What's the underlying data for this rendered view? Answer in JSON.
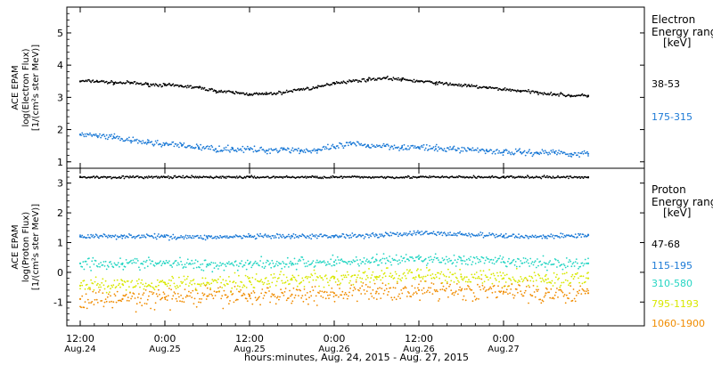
{
  "chart_data": [
    {
      "type": "scatter",
      "panel": "electron",
      "ylabel_lines": [
        "ACE EPAM",
        "log(Electron Flux)",
        "[1/(cm²s ster MeV)]"
      ],
      "ylim": [
        0.8,
        5.8
      ],
      "yticks": [
        1,
        2,
        3,
        4,
        5
      ],
      "legend_title": [
        "Electron",
        "Energy ranges",
        "[keV]"
      ],
      "series": [
        {
          "name": "38-53",
          "color": "#000000",
          "x": [
            0.0,
            0.1,
            0.2,
            0.3,
            0.4,
            0.5,
            0.6,
            0.7,
            0.8,
            0.9,
            1.0,
            1.1,
            1.2,
            1.3,
            1.4,
            1.5,
            1.6,
            1.7,
            1.8,
            1.9,
            2.0,
            2.1,
            2.2,
            2.3,
            2.4,
            2.5,
            2.6,
            2.7,
            2.8,
            2.9,
            3.0
          ],
          "y": [
            3.5,
            3.5,
            3.45,
            3.45,
            3.4,
            3.38,
            3.35,
            3.3,
            3.2,
            3.15,
            3.1,
            3.1,
            3.15,
            3.25,
            3.3,
            3.45,
            3.5,
            3.55,
            3.6,
            3.55,
            3.5,
            3.45,
            3.4,
            3.35,
            3.3,
            3.25,
            3.2,
            3.15,
            3.1,
            3.05,
            3.05
          ]
        },
        {
          "name": "175-315",
          "color": "#1c7ad6",
          "x": [
            0.0,
            0.1,
            0.2,
            0.3,
            0.4,
            0.5,
            0.6,
            0.7,
            0.8,
            0.9,
            1.0,
            1.1,
            1.2,
            1.3,
            1.4,
            1.5,
            1.6,
            1.7,
            1.8,
            1.9,
            2.0,
            2.1,
            2.2,
            2.3,
            2.4,
            2.5,
            2.6,
            2.7,
            2.8,
            2.9,
            3.0
          ],
          "y": [
            1.85,
            1.8,
            1.75,
            1.65,
            1.6,
            1.55,
            1.5,
            1.45,
            1.4,
            1.4,
            1.38,
            1.35,
            1.4,
            1.35,
            1.35,
            1.45,
            1.55,
            1.5,
            1.5,
            1.45,
            1.45,
            1.4,
            1.4,
            1.38,
            1.35,
            1.3,
            1.3,
            1.28,
            1.3,
            1.25,
            1.25
          ]
        }
      ]
    },
    {
      "type": "scatter",
      "panel": "proton",
      "ylabel_lines": [
        "ACE EPAM",
        "log(Proton Flux)",
        "[1/(cm²s ster MeV)]"
      ],
      "ylim": [
        -1.8,
        3.5
      ],
      "yticks": [
        -1,
        0,
        1,
        2,
        3
      ],
      "legend_title": [
        "Proton",
        "Energy ranges",
        "[keV]"
      ],
      "series": [
        {
          "name": "47-68",
          "color": "#000000",
          "x": [
            0.0,
            0.5,
            1.0,
            1.5,
            2.0,
            2.5,
            3.0
          ],
          "y": [
            3.2,
            3.2,
            3.2,
            3.2,
            3.2,
            3.2,
            3.2
          ]
        },
        {
          "name": "115-195",
          "color": "#1c7ad6",
          "x": [
            0.0,
            0.25,
            0.5,
            0.75,
            1.0,
            1.25,
            1.5,
            1.75,
            2.0,
            2.25,
            2.5,
            2.75,
            3.0
          ],
          "y": [
            1.2,
            1.22,
            1.2,
            1.18,
            1.2,
            1.2,
            1.22,
            1.25,
            1.32,
            1.28,
            1.22,
            1.2,
            1.25
          ]
        },
        {
          "name": "310-580",
          "color": "#25d5c3",
          "x": [
            0.0,
            0.25,
            0.5,
            0.75,
            1.0,
            1.25,
            1.5,
            1.75,
            2.0,
            2.25,
            2.5,
            2.75,
            3.0
          ],
          "y": [
            0.3,
            0.3,
            0.3,
            0.25,
            0.3,
            0.3,
            0.35,
            0.4,
            0.45,
            0.4,
            0.35,
            0.3,
            0.3
          ]
        },
        {
          "name": "795-1193",
          "color": "#d8e800",
          "x": [
            0.0,
            0.25,
            0.5,
            0.75,
            1.0,
            1.25,
            1.5,
            1.75,
            2.0,
            2.25,
            2.5,
            2.75,
            3.0
          ],
          "y": [
            -0.45,
            -0.4,
            -0.35,
            -0.35,
            -0.3,
            -0.25,
            -0.2,
            -0.15,
            -0.1,
            -0.15,
            -0.2,
            -0.25,
            -0.2
          ]
        },
        {
          "name": "1060-1900",
          "color": "#f08c00",
          "x": [
            0.0,
            0.25,
            0.5,
            0.75,
            1.0,
            1.25,
            1.5,
            1.75,
            2.0,
            2.25,
            2.5,
            2.75,
            3.0
          ],
          "y": [
            -0.9,
            -0.9,
            -0.85,
            -0.8,
            -0.8,
            -0.75,
            -0.7,
            -0.65,
            -0.6,
            -0.6,
            -0.65,
            -0.7,
            -0.7
          ]
        }
      ]
    }
  ],
  "x_axis": {
    "xlabel": "hours:minutes, Aug. 24, 2015 - Aug. 27, 2015",
    "ticks": [
      {
        "t": 0.0,
        "time": "12:00",
        "date": "Aug.24"
      },
      {
        "t": 0.5,
        "time": "0:00",
        "date": "Aug.25"
      },
      {
        "t": 1.0,
        "time": "12:00",
        "date": "Aug.25"
      },
      {
        "t": 1.5,
        "time": "0:00",
        "date": "Aug.26"
      },
      {
        "t": 2.0,
        "time": "12:00",
        "date": "Aug.26"
      },
      {
        "t": 2.5,
        "time": "0:00",
        "date": "Aug.27"
      }
    ]
  }
}
